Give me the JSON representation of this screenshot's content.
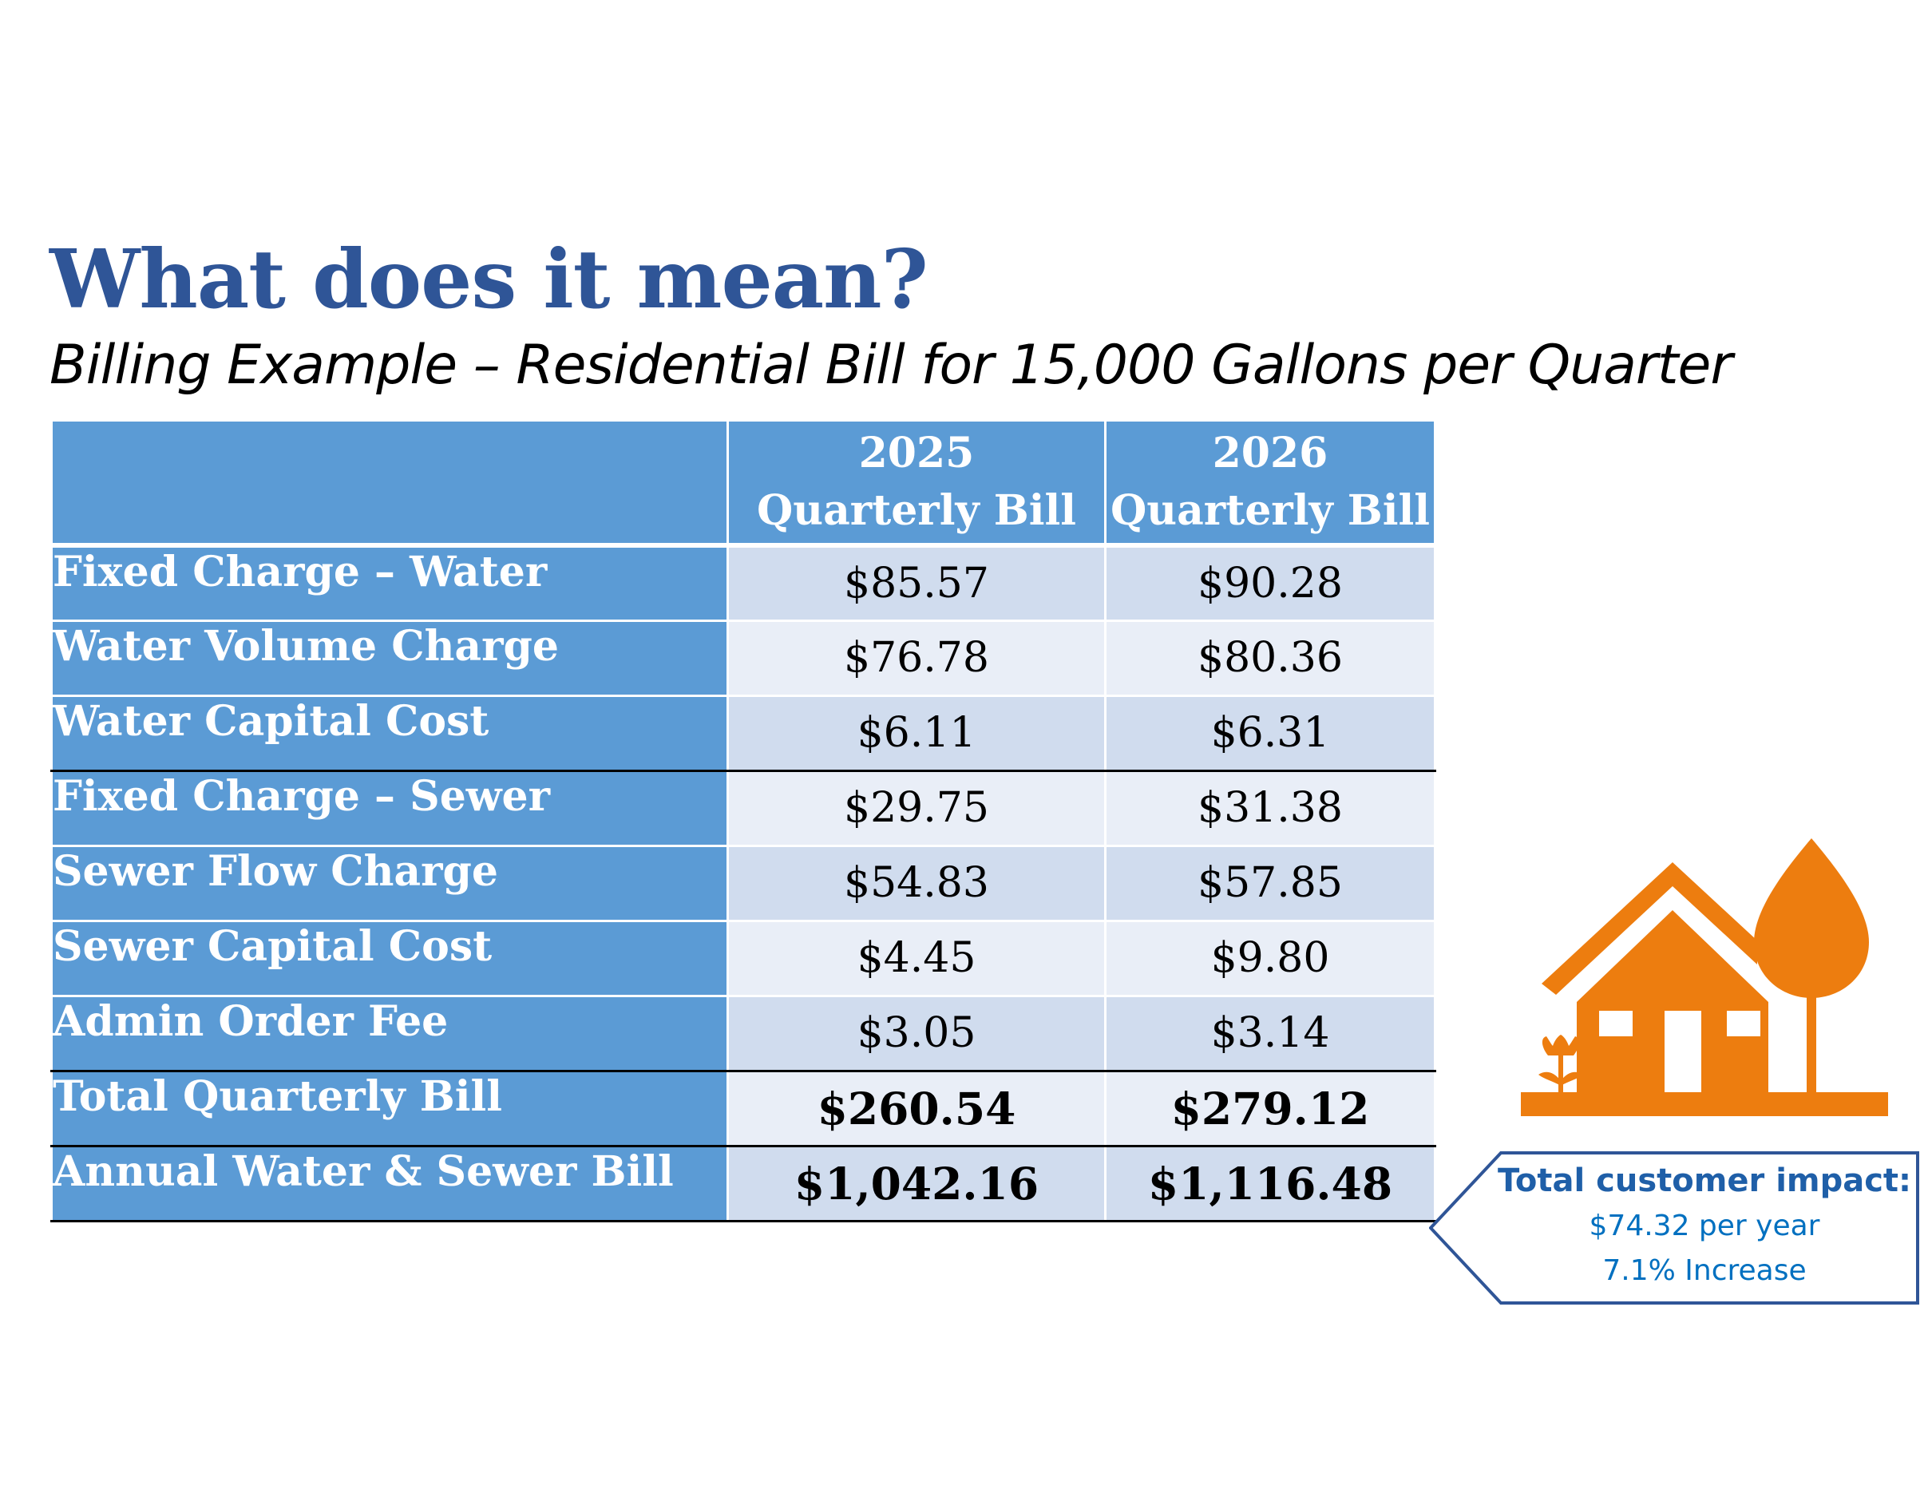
{
  "title": "What does it mean?",
  "subtitle": "Billing Example – Residential Bill for 15,000 Gallons per Quarter",
  "table": {
    "headers": [
      {
        "line1": "",
        "line2": ""
      },
      {
        "line1": "2025",
        "line2": "Quarterly Bill"
      },
      {
        "line1": "2026",
        "line2": "Quarterly Bill"
      }
    ],
    "rows": [
      {
        "label": "Fixed Charge – Water",
        "y2025": "$85.57",
        "y2026": "$90.28"
      },
      {
        "label": "Water Volume Charge",
        "y2025": "$76.78",
        "y2026": "$80.36"
      },
      {
        "label": "Water Capital Cost",
        "y2025": "$6.11",
        "y2026": "$6.31"
      },
      {
        "label": "Fixed Charge – Sewer",
        "y2025": "$29.75",
        "y2026": "$31.38"
      },
      {
        "label": "Sewer Flow Charge",
        "y2025": "$54.83",
        "y2026": "$57.85"
      },
      {
        "label": "Sewer Capital Cost",
        "y2025": "$4.45",
        "y2026": "$9.80"
      },
      {
        "label": "Admin Order Fee",
        "y2025": "$3.05",
        "y2026": "$3.14"
      },
      {
        "label": "Total Quarterly Bill",
        "y2025": "$260.54",
        "y2026": "$279.12"
      },
      {
        "label": "Annual Water & Sewer Bill",
        "y2025": "$1,042.16",
        "y2026": "$1,116.48"
      }
    ]
  },
  "callout": {
    "title": "Total customer impact:",
    "line1": "$74.32 per year",
    "line2": "7.1% Increase"
  },
  "icons": {
    "house": "house-with-tree-icon"
  },
  "colors": {
    "title": "#2f5597",
    "header_fill": "#5b9bd5",
    "row_dark": "#d0dcee",
    "row_light": "#e9eef7",
    "icon": "#ed7d0f",
    "callout_text": "#0070c0"
  }
}
